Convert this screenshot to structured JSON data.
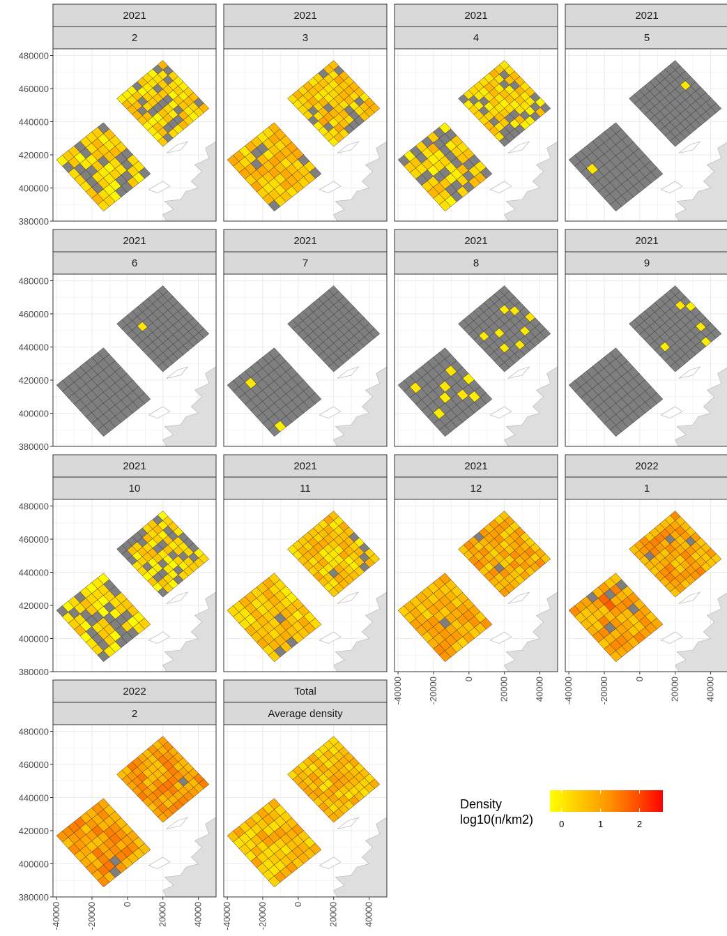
{
  "chart_data": {
    "type": "heatmap",
    "description_fields": {
      "x_ticks": [
        "-40000",
        "-20000",
        "0",
        "20000",
        "40000"
      ],
      "y_ticks": [
        "480000",
        "460000",
        "440000",
        "420000",
        "400000",
        "380000"
      ],
      "xlim": [
        -42000,
        50000
      ],
      "ylim": [
        380000,
        484000
      ]
    },
    "legend": {
      "title_line1": "Density",
      "title_line2": "log10(n/km2)",
      "ticks": [
        "0",
        "1",
        "2"
      ],
      "range": [
        -0.3,
        2.6
      ],
      "colors": [
        "#ffff00",
        "#ffcc00",
        "#ff9900",
        "#ff5500",
        "#ff0000"
      ],
      "missing_color": "#7f7f7f",
      "position": "right"
    },
    "colors": {
      "strip_fill": "#d9d9d9",
      "strip_border": "#333333",
      "land_fill": "#dedede",
      "grid": "#ebebeb"
    },
    "panels": [
      {
        "year": "2021",
        "label": "2",
        "mode": "mix",
        "mean": 0.25,
        "gray": 0.18,
        "seed": 2
      },
      {
        "year": "2021",
        "label": "3",
        "mode": "mix",
        "mean": 0.5,
        "gray": 0.09,
        "seed": 3
      },
      {
        "year": "2021",
        "label": "4",
        "mode": "mix",
        "mean": 0.3,
        "gray": 0.3,
        "seed": 4
      },
      {
        "year": "2021",
        "label": "5",
        "mode": "sparse",
        "yellow": [
          [
            1,
            7,
            3
          ],
          [
            0,
            1,
            2
          ]
        ],
        "seed": 5
      },
      {
        "year": "2021",
        "label": "6",
        "mode": "sparse",
        "yellow": [
          [
            1,
            2,
            2
          ]
        ],
        "seed": 6
      },
      {
        "year": "2021",
        "label": "7",
        "mode": "sparse",
        "yellow": [
          [
            0,
            1,
            7
          ],
          [
            0,
            2,
            1
          ],
          [
            0,
            8,
            4
          ]
        ],
        "seed": 7
      },
      {
        "year": "2021",
        "label": "8",
        "mode": "sparse",
        "yellow": [
          [
            0,
            1,
            1
          ],
          [
            0,
            1,
            5
          ],
          [
            0,
            3,
            4
          ],
          [
            0,
            4,
            3
          ],
          [
            0,
            5,
            5
          ],
          [
            0,
            6,
            2
          ],
          [
            0,
            6,
            6
          ],
          [
            0,
            7,
            4
          ],
          [
            1,
            1,
            3
          ],
          [
            1,
            2,
            6
          ],
          [
            1,
            3,
            4
          ],
          [
            1,
            4,
            7
          ],
          [
            1,
            6,
            2
          ],
          [
            1,
            6,
            6
          ],
          [
            1,
            7,
            3
          ],
          [
            1,
            8,
            5
          ]
        ],
        "seed": 8
      },
      {
        "year": "2021",
        "label": "9",
        "mode": "sparse",
        "yellow": [
          [
            1,
            1,
            5
          ],
          [
            1,
            7,
            2
          ],
          [
            1,
            7,
            6
          ],
          [
            1,
            8,
            3
          ],
          [
            1,
            6,
            8
          ]
        ],
        "seed": 9
      },
      {
        "year": "2021",
        "label": "10",
        "mode": "mix",
        "mean": 0.2,
        "gray": 0.33,
        "seed": 10
      },
      {
        "year": "2021",
        "label": "11",
        "mode": "mix",
        "mean": 0.45,
        "gray": 0.06,
        "seed": 11
      },
      {
        "year": "2021",
        "label": "12",
        "mode": "mix",
        "mean": 0.8,
        "gray": 0.01,
        "seed": 12
      },
      {
        "year": "2022",
        "label": "1",
        "mode": "mix",
        "mean": 0.9,
        "gray": 0.03,
        "seed": 13,
        "hot": [
          [
            0,
            5,
            1,
            2.3
          ],
          [
            0,
            4,
            2,
            1.8
          ],
          [
            0,
            4,
            1,
            1.7
          ]
        ]
      },
      {
        "year": "2022",
        "label": "2",
        "mode": "mix",
        "mean": 1.0,
        "gray": 0.02,
        "seed": 14
      },
      {
        "year": "Total",
        "label": "Average density",
        "mode": "mix",
        "mean": 0.6,
        "gray": 0.0,
        "seed": 15
      }
    ]
  }
}
